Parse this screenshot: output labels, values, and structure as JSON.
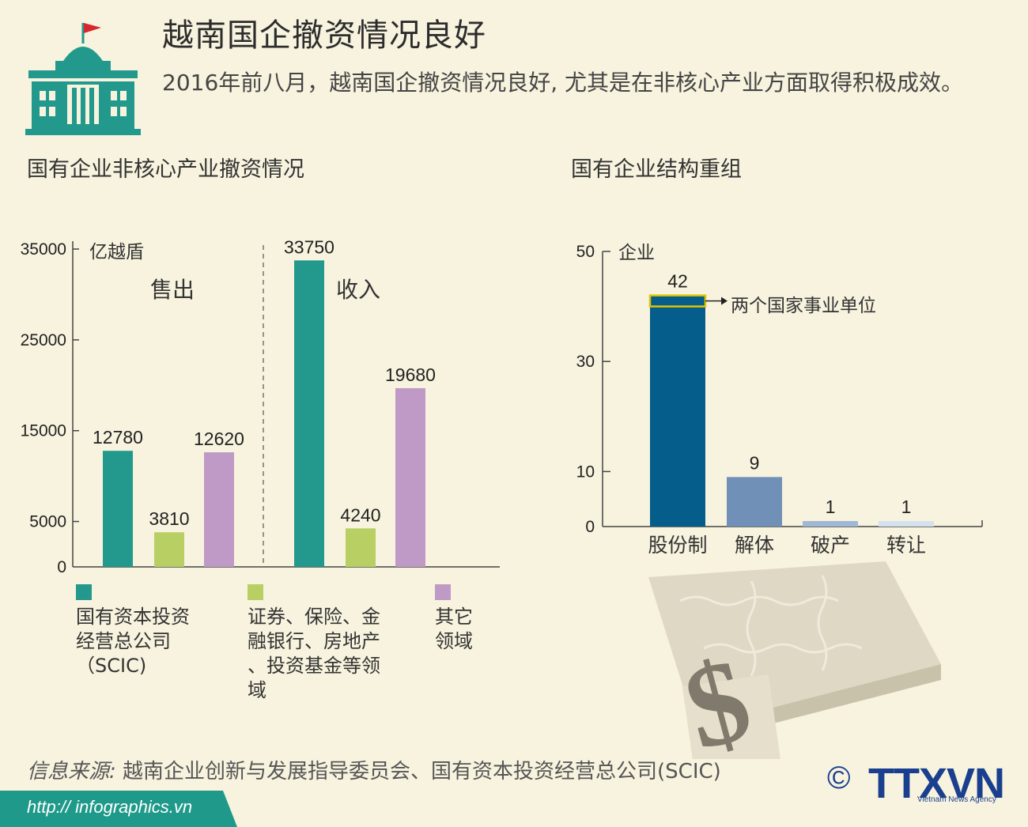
{
  "title": "越南国企撤资情况良好",
  "subtitle": "2016年前八月，越南国企撤资情况良好, 尤其是在非核心产业方面取得积极成效。",
  "colors": {
    "teal": "#22998c",
    "green": "#b8cf64",
    "purple": "#c09ac6",
    "navy": "#055d8c",
    "steel": "#7190b8",
    "light_blue": "#9fb8d6",
    "pale_blue": "#d4e2ee",
    "highlight": "#e1c300",
    "footer": "#1f9a8a"
  },
  "chart_data": [
    {
      "type": "bar",
      "title": "国有企业非核心产业撤资情况",
      "ylabel": "亿越盾",
      "ylim": [
        0,
        35000
      ],
      "yticks": [
        "35000",
        "25000",
        "15000",
        "5000",
        "0"
      ],
      "groups": [
        {
          "name": "售出",
          "bars": [
            {
              "category": "国有资本投资经营总公司（SCIC)",
              "value": 12780,
              "label": "12780",
              "color": "#22998c"
            },
            {
              "category": "证券、保险、金融银行、房地产、投资基金等领域",
              "value": 3810,
              "label": "3810",
              "color": "#b8cf64"
            },
            {
              "category": "其它领域",
              "value": 12620,
              "label": "12620",
              "color": "#c09ac6"
            }
          ]
        },
        {
          "name": "收入",
          "bars": [
            {
              "category": "国有资本投资经营总公司（SCIC)",
              "value": 33750,
              "label": "33750",
              "color": "#22998c"
            },
            {
              "category": "证券、保险、金融银行、房地产、投资基金等领域",
              "value": 4240,
              "label": "4240",
              "color": "#b8cf64"
            },
            {
              "category": "其它领域",
              "value": 19680,
              "label": "19680",
              "color": "#c09ac6"
            }
          ]
        }
      ],
      "legend": [
        {
          "lines": [
            "国有资本投资",
            "经营总公司",
            "（SCIC)"
          ],
          "color": "#22998c"
        },
        {
          "lines": [
            "证券、保险、金",
            "融银行、房地产",
            "、投资基金等领",
            "域"
          ],
          "color": "#b8cf64"
        },
        {
          "lines": [
            "其它",
            "领域"
          ],
          "color": "#c09ac6"
        }
      ],
      "legend_placement": "bottom",
      "grid": false
    },
    {
      "type": "bar",
      "title": "国有企业结构重组",
      "ylabel": "企业",
      "ylim": [
        0,
        50
      ],
      "yticks": [
        "50",
        "30",
        "10",
        "0"
      ],
      "categories": [
        "股份制",
        "解体",
        "破产",
        "转让"
      ],
      "values": [
        42,
        9,
        1,
        1
      ],
      "labels": [
        "42",
        "9",
        "1",
        "1"
      ],
      "colors": [
        "#055d8c",
        "#7190b8",
        "#9fb8d6",
        "#d4e2ee"
      ],
      "annotation": {
        "category": "股份制",
        "value": 2,
        "text": "两个国家事业单位"
      },
      "grid": false
    }
  ],
  "footer": {
    "source_label": "信息来源:",
    "source_text": "越南企业创新与发展指导委员会、国有资本投资经营总公司(SCIC)",
    "url": "http:// infographics.vn",
    "copyright": "©",
    "logo": "TTXVN",
    "logo_sub": "Vietnam News Agency"
  }
}
